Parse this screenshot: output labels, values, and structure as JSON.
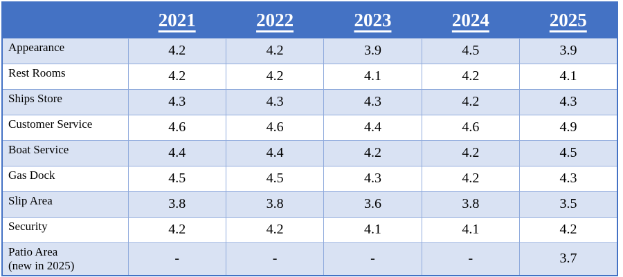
{
  "table": {
    "columns": [
      "2021",
      "2022",
      "2023",
      "2024",
      "2025"
    ],
    "rows": [
      {
        "label": "Appearance",
        "values": [
          "4.2",
          "4.2",
          "3.9",
          "4.5",
          "3.9"
        ]
      },
      {
        "label": "Rest Rooms",
        "values": [
          "4.2",
          "4.2",
          "4.1",
          "4.2",
          "4.1"
        ]
      },
      {
        "label": "Ships Store",
        "values": [
          "4.3",
          "4.3",
          "4.3",
          "4.2",
          "4.3"
        ]
      },
      {
        "label": "Customer Service",
        "values": [
          "4.6",
          "4.6",
          "4.4",
          "4.6",
          "4.9"
        ]
      },
      {
        "label": "Boat Service",
        "values": [
          "4.4",
          "4.4",
          "4.2",
          "4.2",
          "4.5"
        ]
      },
      {
        "label": "Gas Dock",
        "values": [
          "4.5",
          "4.5",
          "4.3",
          "4.2",
          "4.3"
        ]
      },
      {
        "label": "Slip Area",
        "values": [
          "3.8",
          "3.8",
          "3.6",
          "3.8",
          "3.5"
        ]
      },
      {
        "label": "Security",
        "values": [
          "4.2",
          "4.2",
          "4.1",
          "4.1",
          "4.2"
        ]
      },
      {
        "label": "Patio Area",
        "note": "(new in 2025)",
        "values": [
          "-",
          "-",
          "-",
          "-",
          "3.7"
        ]
      }
    ]
  },
  "colors": {
    "header_bg": "#4472C4",
    "header_text": "#FFFFFF",
    "row_shaded": "#D9E2F3",
    "row_plain": "#FFFFFF",
    "grid": "#8FAADC",
    "outer_border": "#4472C4"
  }
}
